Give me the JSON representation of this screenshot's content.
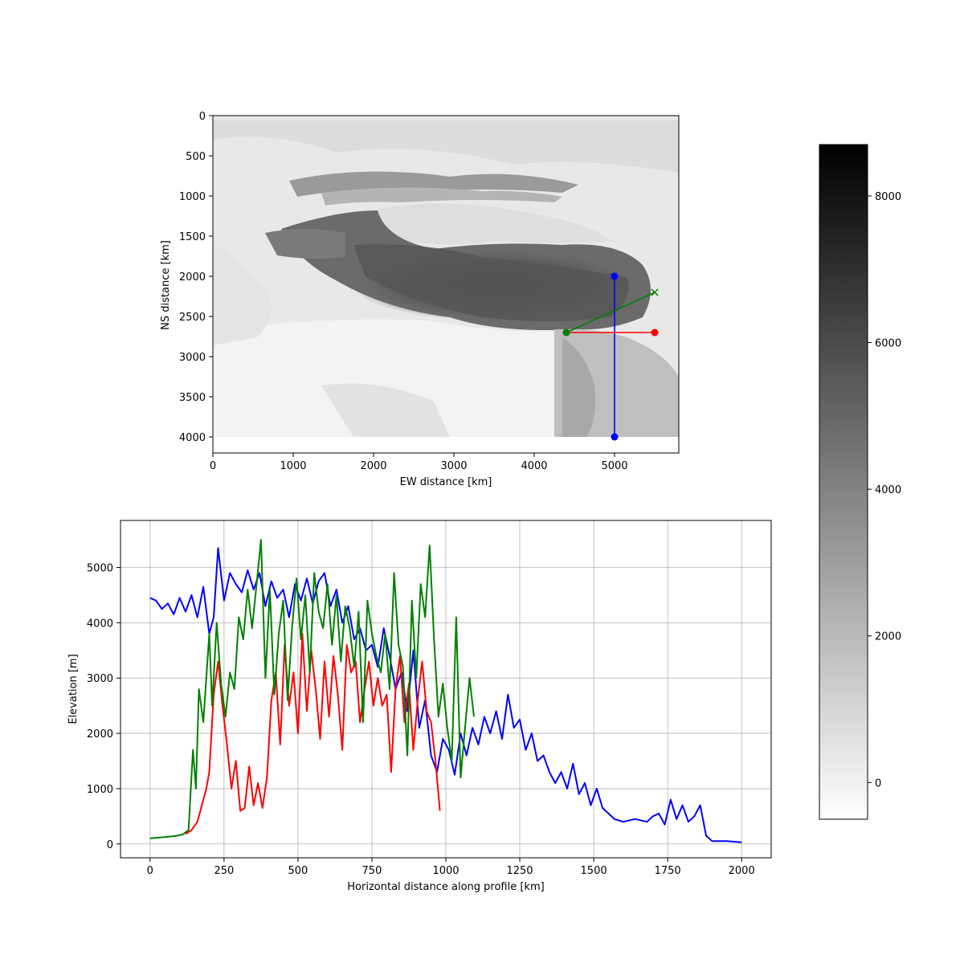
{
  "chart_data": [
    {
      "type": "heatmap",
      "xlabel": "EW distance [km]",
      "ylabel": "NS distance [km]",
      "xlim": [
        0,
        5800
      ],
      "ylim": [
        4200,
        0
      ],
      "x_ticks": [
        0,
        1000,
        2000,
        3000,
        4000,
        5000
      ],
      "y_ticks": [
        0,
        500,
        1000,
        1500,
        2000,
        2500,
        3000,
        3500,
        4000
      ],
      "data_extent": {
        "x": [
          0,
          5800
        ],
        "y": [
          0,
          4000
        ]
      },
      "colormap": "gray_r",
      "colorbar": {
        "ticks": [
          0,
          2000,
          4000,
          6000,
          8000
        ],
        "range": [
          -500,
          8700
        ]
      },
      "profile_lines": [
        {
          "color": "#0000ff",
          "x": [
            5000,
            5000
          ],
          "y": [
            2000,
            4000
          ],
          "start_marker": "circle",
          "end_marker": "circle"
        },
        {
          "color": "#ff0000",
          "x": [
            4400,
            5500
          ],
          "y": [
            2700,
            2700
          ],
          "start_marker": "circle",
          "end_marker": "circle"
        },
        {
          "color": "#008000",
          "x": [
            4400,
            5500
          ],
          "y": [
            2700,
            2200
          ],
          "start_marker": "circle",
          "end_marker": "x"
        }
      ]
    },
    {
      "type": "line",
      "xlabel": "Horizontal distance along profile [km]",
      "ylabel": "Elevation [m]",
      "xlim": [
        -100,
        2100
      ],
      "ylim": [
        -250,
        5850
      ],
      "x_ticks": [
        0,
        250,
        500,
        750,
        1000,
        1250,
        1500,
        1750,
        2000
      ],
      "y_ticks": [
        0,
        1000,
        2000,
        3000,
        4000,
        5000
      ],
      "grid": true,
      "series": [
        {
          "color": "#0000ff",
          "x": [
            0,
            20,
            40,
            60,
            80,
            100,
            120,
            140,
            160,
            180,
            200,
            215,
            230,
            250,
            270,
            290,
            310,
            330,
            350,
            370,
            390,
            410,
            430,
            450,
            470,
            490,
            510,
            530,
            550,
            570,
            590,
            610,
            630,
            650,
            670,
            690,
            710,
            730,
            750,
            770,
            790,
            810,
            830,
            850,
            870,
            890,
            910,
            930,
            950,
            970,
            990,
            1010,
            1030,
            1050,
            1070,
            1090,
            1110,
            1130,
            1150,
            1170,
            1190,
            1210,
            1230,
            1250,
            1270,
            1290,
            1310,
            1330,
            1350,
            1370,
            1390,
            1410,
            1430,
            1450,
            1470,
            1490,
            1510,
            1530,
            1550,
            1570,
            1600,
            1640,
            1680,
            1700,
            1720,
            1740,
            1760,
            1780,
            1800,
            1820,
            1840,
            1860,
            1880,
            1900,
            1950,
            2000
          ],
          "y": [
            4450,
            4400,
            4250,
            4350,
            4150,
            4450,
            4200,
            4500,
            4100,
            4650,
            3800,
            4100,
            5350,
            4400,
            4900,
            4700,
            4550,
            4950,
            4600,
            4900,
            4300,
            4750,
            4450,
            4600,
            4100,
            4700,
            4400,
            4800,
            4350,
            4750,
            4900,
            4300,
            4600,
            4000,
            4300,
            3700,
            3900,
            3500,
            3600,
            3200,
            3900,
            3400,
            2800,
            3100,
            2400,
            3500,
            2100,
            2600,
            1600,
            1300,
            1900,
            1700,
            1250,
            2000,
            1600,
            2100,
            1800,
            2300,
            2000,
            2400,
            1900,
            2700,
            2100,
            2250,
            1700,
            2000,
            1500,
            1600,
            1300,
            1100,
            1300,
            1000,
            1450,
            900,
            1100,
            700,
            1000,
            650,
            550,
            450,
            400,
            450,
            400,
            500,
            550,
            350,
            800,
            450,
            700,
            400,
            500,
            700,
            150,
            50,
            50,
            30
          ]
        },
        {
          "color": "#ff0000",
          "x": [
            120,
            140,
            160,
            175,
            190,
            200,
            215,
            230,
            245,
            260,
            275,
            290,
            305,
            320,
            335,
            350,
            365,
            380,
            395,
            410,
            425,
            440,
            455,
            470,
            485,
            500,
            515,
            530,
            545,
            560,
            575,
            590,
            605,
            620,
            635,
            650,
            665,
            680,
            695,
            710,
            725,
            740,
            755,
            770,
            785,
            800,
            815,
            830,
            845,
            860,
            875,
            890,
            905,
            920,
            935,
            950,
            965,
            980
          ],
          "y": [
            180,
            250,
            400,
            700,
            1000,
            1300,
            2700,
            3300,
            2500,
            1800,
            1000,
            1500,
            600,
            650,
            1400,
            700,
            1100,
            650,
            1200,
            2600,
            3100,
            1800,
            3600,
            2500,
            3100,
            2000,
            3800,
            2400,
            3500,
            2800,
            1900,
            3300,
            2300,
            3400,
            2700,
            1700,
            3600,
            3100,
            3300,
            2200,
            2800,
            3300,
            2500,
            3000,
            2500,
            2700,
            1300,
            2800,
            3400,
            2200,
            2900,
            1700,
            2600,
            3300,
            2400,
            2200,
            1500,
            600
          ]
        },
        {
          "color": "#008000",
          "x": [
            0,
            40,
            80,
            110,
            130,
            145,
            155,
            165,
            180,
            200,
            210,
            225,
            240,
            255,
            270,
            285,
            300,
            315,
            330,
            345,
            360,
            375,
            390,
            405,
            420,
            435,
            450,
            465,
            480,
            495,
            510,
            525,
            540,
            555,
            570,
            585,
            600,
            615,
            630,
            645,
            660,
            675,
            690,
            705,
            720,
            735,
            750,
            765,
            780,
            795,
            810,
            825,
            840,
            855,
            870,
            885,
            900,
            915,
            930,
            945,
            960,
            975,
            990,
            1005,
            1020,
            1035,
            1050,
            1065,
            1080,
            1095
          ],
          "y": [
            100,
            120,
            140,
            170,
            250,
            1700,
            1000,
            2800,
            2200,
            3800,
            2500,
            4000,
            2900,
            2300,
            3100,
            2800,
            4100,
            3700,
            4600,
            3900,
            4700,
            5500,
            3000,
            4600,
            2700,
            3800,
            4400,
            2600,
            3900,
            4800,
            3700,
            4500,
            3100,
            4900,
            4200,
            3900,
            4700,
            3600,
            4500,
            3300,
            4300,
            3900,
            3200,
            4200,
            2200,
            4400,
            3800,
            3400,
            3100,
            3800,
            2800,
            4900,
            3600,
            3200,
            1600,
            4400,
            3000,
            4700,
            4100,
            5400,
            3700,
            2300,
            2900,
            2100,
            1500,
            4100,
            1200,
            2100,
            3000,
            2300
          ]
        }
      ]
    }
  ]
}
